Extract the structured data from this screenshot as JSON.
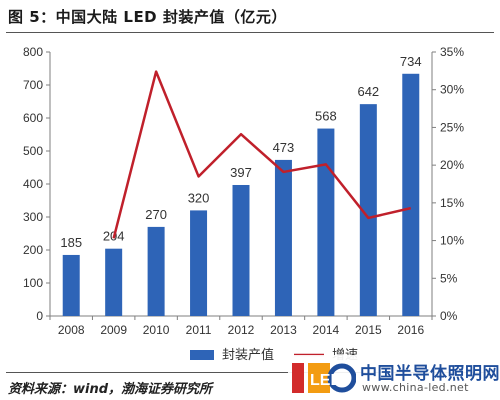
{
  "title": "图 5：中国大陆 LED 封装产值（亿元）",
  "source": "资料来源：wind，渤海证券研究所",
  "watermark": {
    "name": "中国半导体照明网",
    "url": "www.china-led.net",
    "logo_text": "LED"
  },
  "colors": {
    "bar": "#2e64b7",
    "line": "#c0202b",
    "axis": "#7f7f7f",
    "text": "#333333"
  },
  "chart_data": {
    "type": "bar",
    "categories": [
      "2008",
      "2009",
      "2010",
      "2011",
      "2012",
      "2013",
      "2014",
      "2015",
      "2016"
    ],
    "series": [
      {
        "name": "封装产值",
        "kind": "bar",
        "axis": "left",
        "values": [
          185,
          204,
          270,
          320,
          397,
          473,
          568,
          642,
          734
        ],
        "data_labels": [
          "185",
          "204",
          "270",
          "320",
          "397",
          "473",
          "568",
          "642",
          "734"
        ]
      },
      {
        "name": "增速",
        "kind": "line",
        "axis": "right",
        "values": [
          null,
          10.3,
          32.4,
          18.5,
          24.1,
          19.1,
          20.1,
          13.0,
          14.3
        ]
      }
    ],
    "ylim_left": [
      0,
      800
    ],
    "yticks_left": [
      "0",
      "100",
      "200",
      "300",
      "400",
      "500",
      "600",
      "700",
      "800"
    ],
    "ylim_right": [
      0,
      35
    ],
    "yticks_right": [
      "0%",
      "5%",
      "10%",
      "15%",
      "20%",
      "25%",
      "30%",
      "35%"
    ],
    "legend_position": "bottom",
    "grid": false
  }
}
